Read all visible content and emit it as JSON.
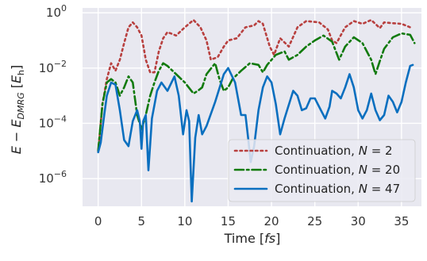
{
  "chart_data": {
    "type": "line",
    "title": "",
    "xlabel": "Time [fs]",
    "ylabel": "E − E_DMRG [E_h]",
    "x_scale": "linear",
    "y_scale": "log",
    "xlim": [
      -1.8,
      37.3
    ],
    "ylim": [
      1e-07,
      1.5
    ],
    "x_ticks": [
      0,
      5,
      10,
      15,
      20,
      25,
      30,
      35
    ],
    "x_tick_labels": [
      "0",
      "5",
      "10",
      "15",
      "20",
      "25",
      "30",
      "35"
    ],
    "y_ticks": [
      1e-06,
      0.0001,
      0.01,
      1
    ],
    "y_tick_labels": [
      {
        "base": "10",
        "exp": "−6"
      },
      {
        "base": "10",
        "exp": "−4"
      },
      {
        "base": "10",
        "exp": "−2"
      },
      {
        "base": "10",
        "exp": "0"
      }
    ],
    "grid": true,
    "legend_position": "lower-right",
    "background": "#e8e8f0",
    "series": [
      {
        "name": "Continuation, N = 2",
        "legend": {
          "prefix": "Continuation, ",
          "var": "N",
          "eq": " = ",
          "value": "2"
        },
        "color": "#b8403f",
        "style": "dotted",
        "points": [
          [
            0,
            1e-05
          ],
          [
            0.5,
            0.0005
          ],
          [
            1.0,
            0.004
          ],
          [
            1.5,
            0.015
          ],
          [
            2.0,
            0.008
          ],
          [
            2.5,
            0.02
          ],
          [
            3.0,
            0.08
          ],
          [
            3.5,
            0.3
          ],
          [
            4.0,
            0.45
          ],
          [
            4.5,
            0.3
          ],
          [
            5.0,
            0.15
          ],
          [
            5.5,
            0.02
          ],
          [
            6.0,
            0.007
          ],
          [
            6.5,
            0.007
          ],
          [
            7.0,
            0.04
          ],
          [
            7.5,
            0.12
          ],
          [
            8.0,
            0.2
          ],
          [
            9.0,
            0.15
          ],
          [
            10.0,
            0.3
          ],
          [
            11.0,
            0.55
          ],
          [
            11.8,
            0.3
          ],
          [
            12.5,
            0.1
          ],
          [
            13.0,
            0.02
          ],
          [
            13.8,
            0.025
          ],
          [
            14.5,
            0.06
          ],
          [
            15.0,
            0.1
          ],
          [
            16.0,
            0.12
          ],
          [
            17.0,
            0.3
          ],
          [
            18.0,
            0.35
          ],
          [
            18.5,
            0.5
          ],
          [
            19.0,
            0.4
          ],
          [
            19.8,
            0.06
          ],
          [
            20.3,
            0.03
          ],
          [
            21.0,
            0.12
          ],
          [
            22.0,
            0.06
          ],
          [
            23.0,
            0.3
          ],
          [
            24.0,
            0.5
          ],
          [
            25.5,
            0.45
          ],
          [
            26.5,
            0.25
          ],
          [
            27.0,
            0.1
          ],
          [
            27.5,
            0.08
          ],
          [
            28.5,
            0.3
          ],
          [
            29.5,
            0.5
          ],
          [
            30.5,
            0.4
          ],
          [
            31.5,
            0.55
          ],
          [
            32.5,
            0.28
          ],
          [
            33.0,
            0.45
          ],
          [
            34.0,
            0.42
          ],
          [
            35.0,
            0.4
          ],
          [
            36.0,
            0.3
          ]
        ]
      },
      {
        "name": "Continuation, N = 20",
        "legend": {
          "prefix": "Continuation, ",
          "var": "N",
          "eq": " = ",
          "value": "20"
        },
        "color": "#117a0d",
        "style": "dashdot",
        "points": [
          [
            0,
            1e-05
          ],
          [
            0.5,
            0.0005
          ],
          [
            1.0,
            0.003
          ],
          [
            1.5,
            0.004
          ],
          [
            2.0,
            0.003
          ],
          [
            2.5,
            0.001
          ],
          [
            3.0,
            0.002
          ],
          [
            3.5,
            0.005
          ],
          [
            4.0,
            0.003
          ],
          [
            4.5,
            0.0002
          ],
          [
            5.0,
            6e-05
          ],
          [
            5.5,
            0.0002
          ],
          [
            6.0,
            0.001
          ],
          [
            6.5,
            0.003
          ],
          [
            7.0,
            0.008
          ],
          [
            7.5,
            0.015
          ],
          [
            8.0,
            0.012
          ],
          [
            9.0,
            0.006
          ],
          [
            10.0,
            0.003
          ],
          [
            11.0,
            0.0012
          ],
          [
            11.5,
            0.0015
          ],
          [
            12.0,
            0.002
          ],
          [
            12.5,
            0.006
          ],
          [
            13.5,
            0.015
          ],
          [
            14.0,
            0.004
          ],
          [
            14.5,
            0.0015
          ],
          [
            15.0,
            0.002
          ],
          [
            15.5,
            0.004
          ],
          [
            16.5,
            0.008
          ],
          [
            17.5,
            0.015
          ],
          [
            18.5,
            0.013
          ],
          [
            19.0,
            0.007
          ],
          [
            19.5,
            0.013
          ],
          [
            20.5,
            0.03
          ],
          [
            21.5,
            0.04
          ],
          [
            22.0,
            0.02
          ],
          [
            23.0,
            0.03
          ],
          [
            24.0,
            0.06
          ],
          [
            25.0,
            0.1
          ],
          [
            26.0,
            0.15
          ],
          [
            27.0,
            0.09
          ],
          [
            27.8,
            0.02
          ],
          [
            28.5,
            0.06
          ],
          [
            29.5,
            0.13
          ],
          [
            30.5,
            0.08
          ],
          [
            31.5,
            0.02
          ],
          [
            32.0,
            0.006
          ],
          [
            32.5,
            0.018
          ],
          [
            33.0,
            0.05
          ],
          [
            34.0,
            0.13
          ],
          [
            35.0,
            0.18
          ],
          [
            36.0,
            0.16
          ],
          [
            36.5,
            0.08
          ]
        ]
      },
      {
        "name": "Continuation, N = 47",
        "legend": {
          "prefix": "Continuation, ",
          "var": "N",
          "eq": " = ",
          "value": "47"
        },
        "color": "#0a6fbf",
        "style": "solid",
        "points": [
          [
            0,
            9e-06
          ],
          [
            0.3,
            2e-05
          ],
          [
            0.7,
            0.0002
          ],
          [
            1.0,
            0.001
          ],
          [
            1.5,
            0.003
          ],
          [
            2.0,
            0.0025
          ],
          [
            2.5,
            0.0003
          ],
          [
            3.0,
            2.5e-05
          ],
          [
            3.5,
            1.5e-05
          ],
          [
            4.0,
            0.00012
          ],
          [
            4.5,
            0.0003
          ],
          [
            4.8,
            0.00012
          ],
          [
            5.0,
            1.2e-05
          ],
          [
            5.2,
            0.00012
          ],
          [
            5.5,
            0.0002
          ],
          [
            5.8,
            2e-06
          ],
          [
            6.2,
            0.00015
          ],
          [
            6.8,
            0.0015
          ],
          [
            7.3,
            0.003
          ],
          [
            8.0,
            0.0015
          ],
          [
            8.8,
            0.005
          ],
          [
            9.3,
            0.001
          ],
          [
            9.8,
            4e-05
          ],
          [
            10.2,
            0.0003
          ],
          [
            10.5,
            0.00012
          ],
          [
            10.8,
            1.5e-07
          ],
          [
            11.2,
            3e-05
          ],
          [
            11.6,
            0.0002
          ],
          [
            12.0,
            4e-05
          ],
          [
            12.5,
            8e-05
          ],
          [
            13.5,
            0.0006
          ],
          [
            14.5,
            0.006
          ],
          [
            15.0,
            0.01
          ],
          [
            15.8,
            0.003
          ],
          [
            16.5,
            0.0002
          ],
          [
            17.0,
            0.0002
          ],
          [
            17.3,
            3e-05
          ],
          [
            17.6,
            4e-06
          ],
          [
            18.0,
            1.5e-05
          ],
          [
            18.5,
            0.0003
          ],
          [
            19.0,
            0.002
          ],
          [
            19.5,
            0.005
          ],
          [
            20.0,
            0.003
          ],
          [
            20.5,
            0.0005
          ],
          [
            21.0,
            4e-05
          ],
          [
            21.5,
            0.00015
          ],
          [
            22.5,
            0.0015
          ],
          [
            23.0,
            0.001
          ],
          [
            23.5,
            0.0003
          ],
          [
            24.0,
            0.00035
          ],
          [
            24.5,
            0.0008
          ],
          [
            25.0,
            0.0008
          ],
          [
            25.7,
            0.0003
          ],
          [
            26.2,
            0.00015
          ],
          [
            26.7,
            0.0004
          ],
          [
            27.0,
            0.0015
          ],
          [
            27.5,
            0.0012
          ],
          [
            28.0,
            0.0008
          ],
          [
            28.5,
            0.002
          ],
          [
            29.0,
            0.006
          ],
          [
            29.5,
            0.002
          ],
          [
            30.0,
            0.0003
          ],
          [
            30.5,
            0.00015
          ],
          [
            31.0,
            0.0003
          ],
          [
            31.5,
            0.0012
          ],
          [
            32.0,
            0.0003
          ],
          [
            32.5,
            0.00013
          ],
          [
            33.0,
            0.0002
          ],
          [
            33.5,
            0.001
          ],
          [
            34.0,
            0.0006
          ],
          [
            34.5,
            0.00025
          ],
          [
            35.0,
            0.0006
          ],
          [
            35.5,
            0.003
          ],
          [
            36.0,
            0.012
          ],
          [
            36.3,
            0.013
          ]
        ]
      }
    ]
  }
}
